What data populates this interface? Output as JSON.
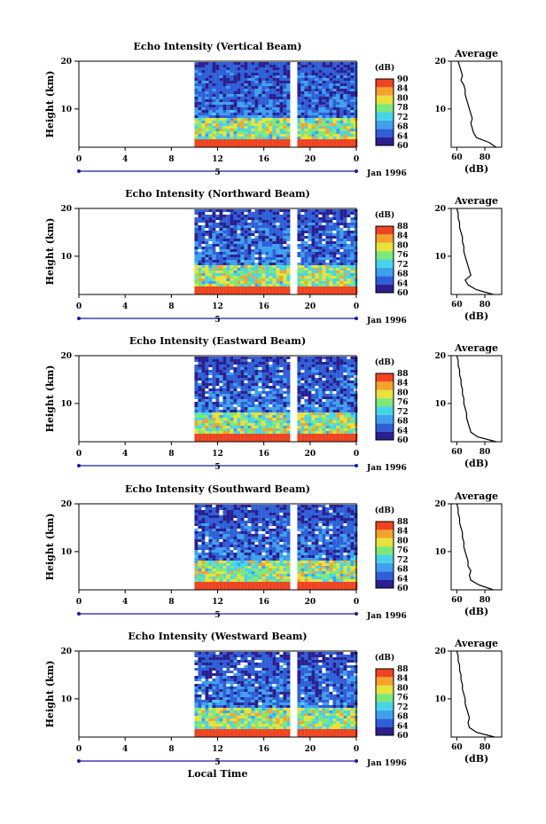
{
  "chart_data": [
    {
      "type": "heatmap",
      "title": "Echo Intensity (Vertical Beam)",
      "ylabel": "Height (km)",
      "yticks": [
        "20",
        "10"
      ],
      "ylim": [
        2,
        20
      ],
      "xticks": [
        "0",
        "4",
        "8",
        "12",
        "16",
        "20",
        "0"
      ],
      "xlim": [
        0,
        24
      ],
      "data_start_hour": 10,
      "data_gap_hours": [
        18.6,
        18.8
      ],
      "date_tick": "5",
      "date_label": "Jan 1996",
      "colorbar": {
        "label": "(dB)",
        "ticks": [
          "90",
          "84",
          "80",
          "78",
          "72",
          "68",
          "64",
          "60"
        ],
        "range": [
          60,
          90
        ]
      },
      "profile": {
        "title": "Average",
        "xticks": [
          "60",
          "80"
        ],
        "xlabel": "(dB)",
        "yticks": [
          "20",
          "10"
        ],
        "height_km": [
          2,
          3,
          4,
          5,
          6,
          7,
          8,
          9,
          10,
          11,
          12,
          13,
          14,
          15,
          16,
          17,
          18,
          19,
          20
        ],
        "values_db": [
          88,
          83,
          74,
          72,
          71,
          70,
          71,
          70,
          69,
          68,
          67,
          66,
          66,
          65,
          63,
          64,
          63,
          62,
          61
        ]
      }
    },
    {
      "type": "heatmap",
      "title": "Echo Intensity (Northward Beam)",
      "ylabel": "Height (km)",
      "yticks": [
        "20",
        "10"
      ],
      "ylim": [
        2,
        20
      ],
      "xticks": [
        "0",
        "4",
        "8",
        "12",
        "16",
        "20",
        "0"
      ],
      "xlim": [
        0,
        24
      ],
      "data_start_hour": 10,
      "data_gap_hours": [
        18.6,
        18.8
      ],
      "date_tick": "5",
      "date_label": "Jan 1996",
      "colorbar": {
        "label": "(dB)",
        "ticks": [
          "88",
          "84",
          "80",
          "76",
          "72",
          "68",
          "64",
          "60"
        ],
        "range": [
          60,
          88
        ]
      },
      "profile": {
        "title": "Average",
        "xticks": [
          "60",
          "80"
        ],
        "xlabel": "(dB)",
        "yticks": [
          "20",
          "10"
        ],
        "height_km": [
          2,
          3,
          4,
          5,
          6,
          7,
          8,
          9,
          10,
          11,
          12,
          13,
          14,
          15,
          16,
          17,
          18,
          19,
          20
        ],
        "values_db": [
          86,
          74,
          68,
          66,
          70,
          69,
          68,
          67,
          66,
          65,
          65,
          64,
          64,
          63,
          62,
          62,
          61,
          61,
          60
        ]
      }
    },
    {
      "type": "heatmap",
      "title": "Echo Intensity (Eastward Beam)",
      "ylabel": "Height (km)",
      "yticks": [
        "20",
        "10"
      ],
      "ylim": [
        2,
        20
      ],
      "xticks": [
        "0",
        "4",
        "8",
        "12",
        "16",
        "20",
        "0"
      ],
      "xlim": [
        0,
        24
      ],
      "data_start_hour": 10,
      "data_gap_hours": [
        18.6,
        18.8
      ],
      "date_tick": "5",
      "date_label": "Jan 1996",
      "colorbar": {
        "label": "(dB)",
        "ticks": [
          "88",
          "84",
          "80",
          "76",
          "72",
          "68",
          "64",
          "60"
        ],
        "range": [
          60,
          88
        ]
      },
      "profile": {
        "title": "Average",
        "xticks": [
          "60",
          "80"
        ],
        "xlabel": "(dB)",
        "yticks": [
          "20",
          "10"
        ],
        "height_km": [
          2,
          3,
          4,
          5,
          6,
          7,
          8,
          9,
          10,
          11,
          12,
          13,
          14,
          15,
          16,
          17,
          18,
          19,
          20
        ],
        "values_db": [
          88,
          75,
          70,
          69,
          68,
          67,
          67,
          66,
          65,
          65,
          64,
          64,
          63,
          63,
          62,
          62,
          61,
          61,
          60
        ]
      }
    },
    {
      "type": "heatmap",
      "title": "Echo Intensity (Southward Beam)",
      "ylabel": "Height (km)",
      "yticks": [
        "20",
        "10"
      ],
      "ylim": [
        2,
        20
      ],
      "xticks": [
        "0",
        "4",
        "8",
        "12",
        "16",
        "20",
        "0"
      ],
      "xlim": [
        0,
        24
      ],
      "data_start_hour": 10,
      "data_gap_hours": [
        18.6,
        18.8
      ],
      "date_tick": "5",
      "date_label": "Jan 1996",
      "colorbar": {
        "label": "(dB)",
        "ticks": [
          "88",
          "84",
          "80",
          "76",
          "72",
          "68",
          "64",
          "60"
        ],
        "range": [
          60,
          88
        ]
      },
      "profile": {
        "title": "Average",
        "xticks": [
          "60",
          "80"
        ],
        "xlabel": "(dB)",
        "yticks": [
          "20",
          "10"
        ],
        "height_km": [
          2,
          3,
          4,
          5,
          6,
          7,
          8,
          9,
          10,
          11,
          12,
          13,
          14,
          15,
          16,
          17,
          18,
          19,
          20
        ],
        "values_db": [
          86,
          76,
          70,
          69,
          70,
          68,
          68,
          67,
          66,
          65,
          65,
          64,
          64,
          63,
          62,
          62,
          61,
          61,
          60
        ]
      }
    },
    {
      "type": "heatmap",
      "title": "Echo Intensity (Westward Beam)",
      "ylabel": "Height (km)",
      "yticks": [
        "20",
        "10"
      ],
      "ylim": [
        2,
        20
      ],
      "xticks": [
        "0",
        "4",
        "8",
        "12",
        "16",
        "20",
        "0"
      ],
      "xlim": [
        0,
        24
      ],
      "data_start_hour": 10,
      "data_gap_hours": [
        18.6,
        18.8
      ],
      "date_tick": "5",
      "date_label": "Jan 1996",
      "xlabel": "Local Time",
      "colorbar": {
        "label": "(dB)",
        "ticks": [
          "88",
          "84",
          "80",
          "76",
          "72",
          "68",
          "64",
          "60"
        ],
        "range": [
          60,
          88
        ]
      },
      "profile": {
        "title": "Average",
        "xticks": [
          "60",
          "80"
        ],
        "xlabel": "(dB)",
        "yticks": [
          "20",
          "10"
        ],
        "height_km": [
          2,
          3,
          4,
          5,
          6,
          7,
          8,
          9,
          10,
          11,
          12,
          13,
          14,
          15,
          16,
          17,
          18,
          19,
          20
        ],
        "values_db": [
          87,
          74,
          69,
          68,
          69,
          68,
          67,
          66,
          66,
          65,
          64,
          64,
          63,
          63,
          62,
          62,
          61,
          61,
          60
        ]
      }
    }
  ],
  "colors": {
    "scale": [
      "#2a1f8f",
      "#2e5fd8",
      "#3fa0ee",
      "#48d4e8",
      "#7de87a",
      "#e8e23c",
      "#f5a22c",
      "#ee4422"
    ],
    "gap": "#ffffff",
    "axis": "#000000",
    "date_axis": "#1a1aa0"
  }
}
